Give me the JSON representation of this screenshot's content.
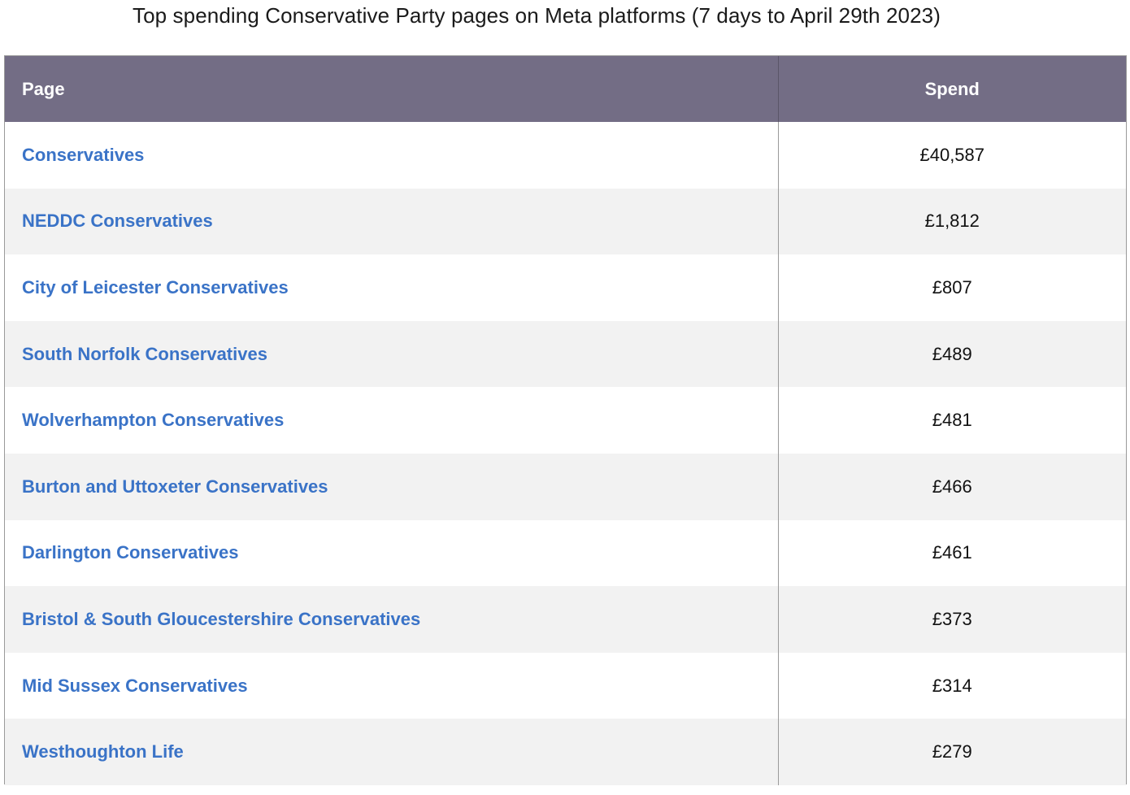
{
  "title": "Top spending Conservative Party pages on Meta platforms (7 days to April 29th 2023)",
  "columns": {
    "page": "Page",
    "spend": "Spend"
  },
  "colors": {
    "header_bg": "#736d85",
    "header_text": "#ffffff",
    "link": "#3a73c7",
    "row_alt": "#f2f2f2"
  },
  "chart_data": {
    "type": "table",
    "title": "Top spending Conservative Party pages on Meta platforms (7 days to April 29th 2023)",
    "columns": [
      "Page",
      "Spend"
    ],
    "rows": [
      {
        "page": "Conservatives",
        "spend": "£40,587",
        "value": 40587
      },
      {
        "page": "NEDDC Conservatives",
        "spend": "£1,812",
        "value": 1812
      },
      {
        "page": "City of Leicester Conservatives",
        "spend": "£807",
        "value": 807
      },
      {
        "page": "South Norfolk Conservatives",
        "spend": "£489",
        "value": 489
      },
      {
        "page": "Wolverhampton Conservatives",
        "spend": "£481",
        "value": 481
      },
      {
        "page": "Burton and Uttoxeter Conservatives",
        "spend": "£466",
        "value": 466
      },
      {
        "page": "Darlington Conservatives",
        "spend": "£461",
        "value": 461
      },
      {
        "page": "Bristol & South Gloucestershire Conservatives",
        "spend": "£373",
        "value": 373
      },
      {
        "page": "Mid Sussex Conservatives",
        "spend": "£314",
        "value": 314
      },
      {
        "page": "Westhoughton Life",
        "spend": "£279",
        "value": 279
      }
    ]
  }
}
